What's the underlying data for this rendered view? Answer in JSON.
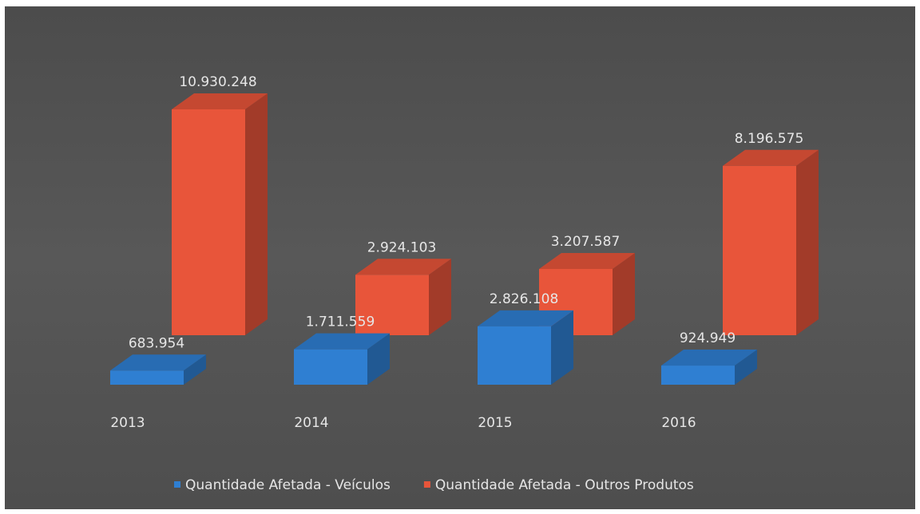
{
  "chart_data": {
    "type": "bar3d",
    "categories": [
      "2013",
      "2014",
      "2015",
      "2016"
    ],
    "series": [
      {
        "name": "Quantidade Afetada - Veículos",
        "color": "#2f7fd2",
        "values": [
          683954,
          1711559,
          2826108,
          924949
        ],
        "value_labels": [
          "683.954",
          "1.711.559",
          "2.826.108",
          "924.949"
        ]
      },
      {
        "name": "Quantidade Afetada - Outros Produtos",
        "color": "#e8553a",
        "values": [
          10930248,
          2924103,
          3207587,
          8196575
        ],
        "value_labels": [
          "10.930.248",
          "2.924.103",
          "3.207.587",
          "8.196.575"
        ]
      }
    ]
  }
}
